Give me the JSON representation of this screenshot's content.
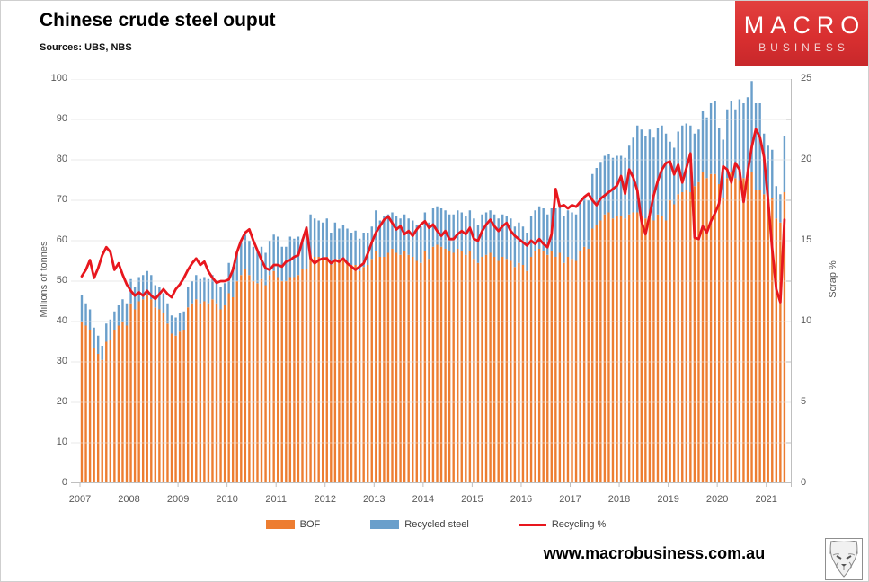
{
  "header": {
    "title": "Chinese crude steel ouput",
    "subtitle": "Sources: UBS, NBS",
    "logo": {
      "line1": "MACRO",
      "line2": "BUSINESS",
      "bg_color": "#d92f30"
    }
  },
  "footer": {
    "url": "www.macrobusiness.com.au",
    "logo_icon": "fox-logo"
  },
  "chart_data": {
    "type": "combo",
    "frequency": "monthly",
    "x_start": "2007-01",
    "x_end": "2021-05",
    "year_ticks": [
      "2007",
      "2008",
      "2009",
      "2010",
      "2011",
      "2012",
      "2013",
      "2014",
      "2015",
      "2016",
      "2017",
      "2018",
      "2019",
      "2020",
      "2021"
    ],
    "left_axis": {
      "label": "Millions of tonnes",
      "min": 0,
      "max": 100,
      "ticks": [
        0,
        10,
        20,
        30,
        40,
        50,
        60,
        70,
        80,
        90,
        100
      ]
    },
    "right_axis": {
      "label": "Scrap %",
      "min": 0,
      "max": 25,
      "ticks": [
        0,
        5,
        10,
        15,
        20,
        25
      ],
      "minor_ticks": [
        2.5,
        7.5,
        12.5,
        17.5,
        22.5
      ]
    },
    "grid": {
      "color": "#d9d9d9",
      "axis_color": "#bfbfbf"
    },
    "legend": [
      {
        "label": "BOF",
        "color": "#ED7D31",
        "type": "bar"
      },
      {
        "label": "Recycled steel",
        "color": "#6A9FCB",
        "type": "bar"
      },
      {
        "label": "Recycling %",
        "color": "#E8171E",
        "type": "line"
      }
    ],
    "series": [
      {
        "name": "BOF",
        "type": "bar",
        "stack": "steel",
        "axis": "left",
        "values": [
          40,
          39,
          38,
          33.5,
          32,
          30.5,
          35,
          35.5,
          38,
          39,
          40,
          39,
          44.5,
          43,
          45,
          45.5,
          46.5,
          45.5,
          43.5,
          43,
          42,
          39.5,
          37,
          36.5,
          37.5,
          38,
          43.5,
          44.5,
          45.5,
          44.5,
          45,
          44.5,
          45.5,
          44.5,
          43,
          44,
          47,
          46,
          50,
          51.5,
          53,
          51.5,
          50,
          49.5,
          50.5,
          49,
          51.5,
          52.5,
          51,
          50,
          50,
          51,
          51,
          51.5,
          53,
          53,
          56.5,
          56,
          56,
          55.5,
          56,
          54,
          55.5,
          55.5,
          55.5,
          54.5,
          54,
          54,
          52.5,
          53.5,
          54,
          55.5,
          57.5,
          56,
          56,
          57,
          58,
          57,
          56.5,
          57.5,
          56.5,
          56,
          55,
          54.5,
          57.5,
          55.5,
          58.5,
          59,
          58.5,
          58,
          57.5,
          57,
          58,
          57.5,
          56.5,
          57.5,
          55.5,
          54.5,
          56,
          56.5,
          57,
          56,
          55,
          56,
          55.5,
          55,
          53.5,
          54.5,
          54,
          52.5,
          56,
          57.5,
          58,
          57.5,
          56.5,
          57.5,
          56,
          57,
          54.5,
          56,
          55.5,
          55,
          57.5,
          58.5,
          58,
          63,
          64,
          65,
          66.5,
          67,
          65.5,
          66,
          66,
          65.5,
          66.5,
          67,
          67,
          66,
          65.5,
          66.5,
          65,
          66.5,
          66,
          65,
          70,
          69,
          71.5,
          72,
          72.5,
          72,
          73.5,
          74.5,
          77,
          75.5,
          76.5,
          76.5,
          74,
          70.5,
          75.5,
          77,
          75.5,
          75,
          75.5,
          75.5,
          77,
          72.5,
          72.5,
          71.5,
          71,
          70.5,
          65.5,
          64.5,
          72
        ]
      },
      {
        "name": "Recycled steel",
        "type": "bar",
        "stack": "steel",
        "axis": "left",
        "values": [
          6.5,
          5.5,
          5,
          5,
          4.5,
          3.5,
          4.5,
          5,
          4.5,
          5,
          5.5,
          5.5,
          6,
          5.5,
          6,
          6,
          6,
          6,
          5.5,
          5.5,
          5,
          5,
          4.5,
          4.5,
          4.5,
          4.5,
          5,
          5.5,
          6,
          6,
          6,
          6,
          6,
          5.5,
          5.5,
          5.5,
          7.5,
          7.5,
          7.5,
          8,
          8.5,
          8.5,
          8.5,
          8,
          8,
          8,
          8.5,
          9,
          10,
          8.5,
          8.5,
          10,
          9.5,
          9.5,
          7.5,
          10.5,
          10,
          9.5,
          9,
          9,
          9.5,
          8,
          9,
          7.5,
          8.5,
          8.5,
          8,
          8.5,
          8,
          8.5,
          8,
          8,
          10,
          9,
          10,
          9.5,
          9,
          9,
          9,
          9,
          9,
          9,
          9,
          9,
          9.5,
          9,
          9.5,
          9.5,
          9.5,
          9.5,
          9,
          9.5,
          9.5,
          9.5,
          9.5,
          10,
          10,
          9.5,
          10.5,
          10.5,
          10.5,
          10.5,
          10.5,
          10.5,
          10.5,
          10.5,
          10,
          10,
          9.5,
          9.5,
          10,
          10,
          10.5,
          10.5,
          10,
          10.5,
          12,
          12,
          11.5,
          11.5,
          11.5,
          11.5,
          12,
          12,
          12,
          13.5,
          14,
          14.5,
          14.5,
          14.5,
          15,
          15,
          15,
          15,
          17,
          18.5,
          21.5,
          21.5,
          20.5,
          21,
          20.5,
          21.5,
          22.5,
          21.5,
          14.5,
          14,
          15.5,
          16.5,
          16.5,
          16.5,
          13,
          13,
          15,
          15,
          17.5,
          18,
          14,
          14.5,
          17,
          17.5,
          17,
          20,
          18.5,
          20,
          22.5,
          21.5,
          21.5,
          15,
          12.5,
          12,
          8,
          7,
          14
        ]
      },
      {
        "name": "Recycling %",
        "type": "line",
        "axis": "right",
        "values": [
          12.8,
          13.2,
          13.8,
          12.7,
          13.3,
          14.1,
          14.6,
          14.3,
          13.2,
          13.6,
          12.9,
          12.3,
          11.9,
          11.6,
          11.8,
          11.6,
          11.9,
          11.6,
          11.4,
          11.7,
          12.0,
          11.7,
          11.5,
          12.0,
          12.3,
          12.7,
          13.2,
          13.6,
          13.9,
          13.5,
          13.7,
          13.1,
          12.7,
          12.4,
          12.5,
          12.5,
          12.6,
          13.2,
          14.3,
          15.0,
          15.5,
          15.7,
          15.0,
          14.4,
          13.8,
          13.3,
          13.2,
          13.5,
          13.5,
          13.4,
          13.7,
          13.8,
          14.0,
          14.1,
          15.0,
          15.8,
          13.9,
          13.6,
          13.8,
          13.9,
          13.9,
          13.6,
          13.8,
          13.7,
          13.9,
          13.6,
          13.4,
          13.2,
          13.4,
          13.6,
          14.2,
          14.9,
          15.5,
          15.9,
          16.3,
          16.5,
          16.1,
          15.7,
          15.9,
          15.4,
          15.6,
          15.3,
          15.7,
          16.0,
          16.2,
          15.8,
          16.0,
          15.6,
          15.3,
          15.6,
          15.1,
          15.1,
          15.4,
          15.6,
          15.4,
          15.8,
          15.1,
          15.0,
          15.6,
          16.0,
          16.3,
          15.9,
          15.6,
          15.9,
          16.1,
          15.6,
          15.3,
          15.1,
          14.9,
          14.7,
          15.0,
          14.8,
          15.1,
          14.8,
          14.6,
          15.4,
          18.2,
          17.1,
          17.2,
          17.0,
          17.2,
          17.1,
          17.4,
          17.7,
          17.9,
          17.5,
          17.2,
          17.6,
          17.8,
          18.0,
          18.2,
          18.4,
          19.0,
          17.9,
          19.4,
          18.9,
          18.1,
          16.2,
          15.4,
          16.6,
          17.8,
          18.7,
          19.4,
          19.8,
          19.9,
          19.1,
          19.7,
          18.6,
          19.5,
          20.4,
          15.2,
          15.1,
          15.9,
          15.5,
          16.2,
          16.7,
          17.3,
          19.6,
          19.4,
          18.6,
          19.8,
          19.4,
          17.4,
          19.2,
          20.8,
          21.9,
          21.4,
          20.2,
          17.5,
          14.5,
          12.0,
          11.2,
          16.3
        ]
      }
    ]
  }
}
